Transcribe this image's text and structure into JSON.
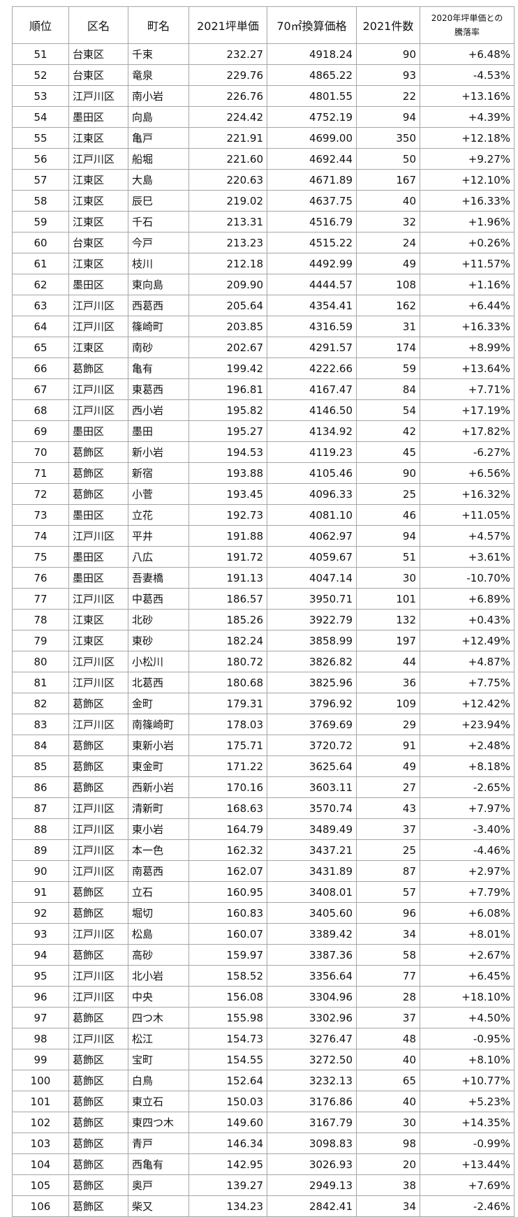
{
  "table": {
    "header": [
      "順位",
      "区名",
      "町名",
      "2021坪単価",
      "70㎡換算価格",
      "2021件数",
      [
        "2020年坪単価との",
        "騰落率"
      ]
    ],
    "rows": [
      [
        "51",
        "台東区",
        "千束",
        "232.27",
        "4918.24",
        "90",
        "+6.48%"
      ],
      [
        "52",
        "台東区",
        "竜泉",
        "229.76",
        "4865.22",
        "93",
        "-4.53%"
      ],
      [
        "53",
        "江戸川区",
        "南小岩",
        "226.76",
        "4801.55",
        "22",
        "+13.16%"
      ],
      [
        "54",
        "墨田区",
        "向島",
        "224.42",
        "4752.19",
        "94",
        "+4.39%"
      ],
      [
        "55",
        "江東区",
        "亀戸",
        "221.91",
        "4699.00",
        "350",
        "+12.18%"
      ],
      [
        "56",
        "江戸川区",
        "船堀",
        "221.60",
        "4692.44",
        "50",
        "+9.27%"
      ],
      [
        "57",
        "江東区",
        "大島",
        "220.63",
        "4671.89",
        "167",
        "+12.10%"
      ],
      [
        "58",
        "江東区",
        "辰巳",
        "219.02",
        "4637.75",
        "40",
        "+16.33%"
      ],
      [
        "59",
        "江東区",
        "千石",
        "213.31",
        "4516.79",
        "32",
        "+1.96%"
      ],
      [
        "60",
        "台東区",
        "今戸",
        "213.23",
        "4515.22",
        "24",
        "+0.26%"
      ],
      [
        "61",
        "江東区",
        "枝川",
        "212.18",
        "4492.99",
        "49",
        "+11.57%"
      ],
      [
        "62",
        "墨田区",
        "東向島",
        "209.90",
        "4444.57",
        "108",
        "+1.16%"
      ],
      [
        "63",
        "江戸川区",
        "西葛西",
        "205.64",
        "4354.41",
        "162",
        "+6.44%"
      ],
      [
        "64",
        "江戸川区",
        "篠崎町",
        "203.85",
        "4316.59",
        "31",
        "+16.33%"
      ],
      [
        "65",
        "江東区",
        "南砂",
        "202.67",
        "4291.57",
        "174",
        "+8.99%"
      ],
      [
        "66",
        "葛飾区",
        "亀有",
        "199.42",
        "4222.66",
        "59",
        "+13.64%"
      ],
      [
        "67",
        "江戸川区",
        "東葛西",
        "196.81",
        "4167.47",
        "84",
        "+7.71%"
      ],
      [
        "68",
        "江戸川区",
        "西小岩",
        "195.82",
        "4146.50",
        "54",
        "+17.19%"
      ],
      [
        "69",
        "墨田区",
        "墨田",
        "195.27",
        "4134.92",
        "42",
        "+17.82%"
      ],
      [
        "70",
        "葛飾区",
        "新小岩",
        "194.53",
        "4119.23",
        "45",
        "-6.27%"
      ],
      [
        "71",
        "葛飾区",
        "新宿",
        "193.88",
        "4105.46",
        "90",
        "+6.56%"
      ],
      [
        "72",
        "葛飾区",
        "小菅",
        "193.45",
        "4096.33",
        "25",
        "+16.32%"
      ],
      [
        "73",
        "墨田区",
        "立花",
        "192.73",
        "4081.10",
        "46",
        "+11.05%"
      ],
      [
        "74",
        "江戸川区",
        "平井",
        "191.88",
        "4062.97",
        "94",
        "+4.57%"
      ],
      [
        "75",
        "墨田区",
        "八広",
        "191.72",
        "4059.67",
        "51",
        "+3.61%"
      ],
      [
        "76",
        "墨田区",
        "吾妻橋",
        "191.13",
        "4047.14",
        "30",
        "-10.70%"
      ],
      [
        "77",
        "江戸川区",
        "中葛西",
        "186.57",
        "3950.71",
        "101",
        "+6.89%"
      ],
      [
        "78",
        "江東区",
        "北砂",
        "185.26",
        "3922.79",
        "132",
        "+0.43%"
      ],
      [
        "79",
        "江東区",
        "東砂",
        "182.24",
        "3858.99",
        "197",
        "+12.49%"
      ],
      [
        "80",
        "江戸川区",
        "小松川",
        "180.72",
        "3826.82",
        "44",
        "+4.87%"
      ],
      [
        "81",
        "江戸川区",
        "北葛西",
        "180.68",
        "3825.96",
        "36",
        "+7.75%"
      ],
      [
        "82",
        "葛飾区",
        "金町",
        "179.31",
        "3796.92",
        "109",
        "+12.42%"
      ],
      [
        "83",
        "江戸川区",
        "南篠崎町",
        "178.03",
        "3769.69",
        "29",
        "+23.94%"
      ],
      [
        "84",
        "葛飾区",
        "東新小岩",
        "175.71",
        "3720.72",
        "91",
        "+2.48%"
      ],
      [
        "85",
        "葛飾区",
        "東金町",
        "171.22",
        "3625.64",
        "49",
        "+8.18%"
      ],
      [
        "86",
        "葛飾区",
        "西新小岩",
        "170.16",
        "3603.11",
        "27",
        "-2.65%"
      ],
      [
        "87",
        "江戸川区",
        "清新町",
        "168.63",
        "3570.74",
        "43",
        "+7.97%"
      ],
      [
        "88",
        "江戸川区",
        "東小岩",
        "164.79",
        "3489.49",
        "37",
        "-3.40%"
      ],
      [
        "89",
        "江戸川区",
        "本一色",
        "162.32",
        "3437.21",
        "25",
        "-4.46%"
      ],
      [
        "90",
        "江戸川区",
        "南葛西",
        "162.07",
        "3431.89",
        "87",
        "+2.97%"
      ],
      [
        "91",
        "葛飾区",
        "立石",
        "160.95",
        "3408.01",
        "57",
        "+7.79%"
      ],
      [
        "92",
        "葛飾区",
        "堀切",
        "160.83",
        "3405.60",
        "96",
        "+6.08%"
      ],
      [
        "93",
        "江戸川区",
        "松島",
        "160.07",
        "3389.42",
        "34",
        "+8.01%"
      ],
      [
        "94",
        "葛飾区",
        "高砂",
        "159.97",
        "3387.36",
        "58",
        "+2.67%"
      ],
      [
        "95",
        "江戸川区",
        "北小岩",
        "158.52",
        "3356.64",
        "77",
        "+6.45%"
      ],
      [
        "96",
        "江戸川区",
        "中央",
        "156.08",
        "3304.96",
        "28",
        "+18.10%"
      ],
      [
        "97",
        "葛飾区",
        "四つ木",
        "155.98",
        "3302.96",
        "37",
        "+4.50%"
      ],
      [
        "98",
        "江戸川区",
        "松江",
        "154.73",
        "3276.47",
        "48",
        "-0.95%"
      ],
      [
        "99",
        "葛飾区",
        "宝町",
        "154.55",
        "3272.50",
        "40",
        "+8.10%"
      ],
      [
        "100",
        "葛飾区",
        "白鳥",
        "152.64",
        "3232.13",
        "65",
        "+10.77%"
      ],
      [
        "101",
        "葛飾区",
        "東立石",
        "150.03",
        "3176.86",
        "40",
        "+5.23%"
      ],
      [
        "102",
        "葛飾区",
        "東四つ木",
        "149.60",
        "3167.79",
        "30",
        "+14.35%"
      ],
      [
        "103",
        "葛飾区",
        "青戸",
        "146.34",
        "3098.83",
        "98",
        "-0.99%"
      ],
      [
        "104",
        "葛飾区",
        "西亀有",
        "142.95",
        "3026.93",
        "20",
        "+13.44%"
      ],
      [
        "105",
        "葛飾区",
        "奥戸",
        "139.27",
        "2949.13",
        "38",
        "+7.69%"
      ],
      [
        "106",
        "葛飾区",
        "柴又",
        "134.23",
        "2842.41",
        "34",
        "-2.46%"
      ]
    ]
  }
}
